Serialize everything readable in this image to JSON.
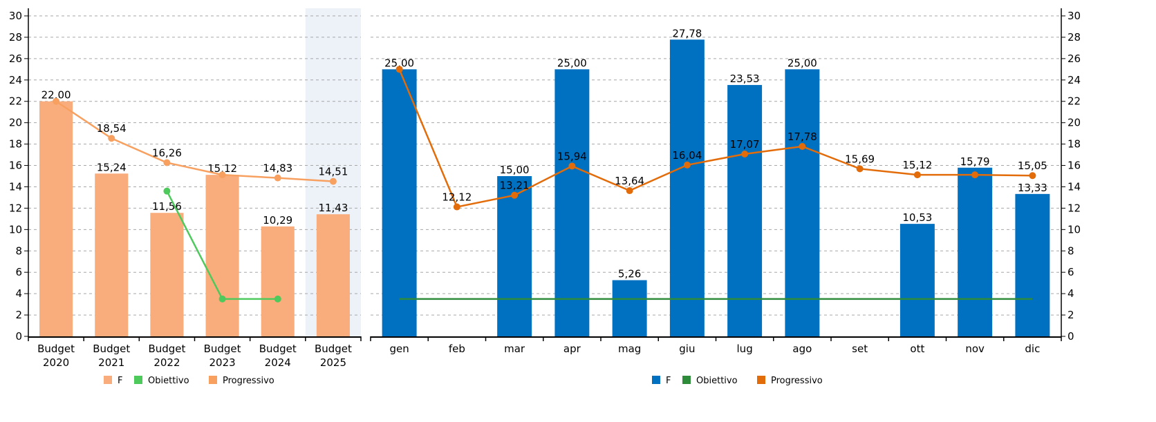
{
  "chart_data": [
    {
      "type": "bar",
      "categories": [
        "Budget 2020",
        "Budget 2021",
        "Budget 2022",
        "Budget 2023",
        "Budget 2024",
        "Budget 2025"
      ],
      "highlighted_category": "Budget 2025",
      "ylim": [
        0,
        30
      ],
      "yticks": [
        0,
        2,
        4,
        6,
        8,
        10,
        12,
        14,
        16,
        18,
        20,
        22,
        24,
        26,
        28,
        30
      ],
      "y_axis_side": "left",
      "grid": true,
      "legend_position": "bottom",
      "series": [
        {
          "name": "F",
          "kind": "bar",
          "color": "#f9ad7d",
          "values": [
            22.0,
            15.24,
            11.56,
            15.12,
            10.29,
            11.43
          ],
          "labels": [
            "22,00",
            "15,24",
            "11,56",
            "15,12",
            "10,29",
            "11,43"
          ]
        },
        {
          "name": "Obiettivo",
          "kind": "line",
          "color": "#4ec95c",
          "values": [
            null,
            null,
            13.6,
            3.5,
            3.5,
            null
          ]
        },
        {
          "name": "Progressivo",
          "kind": "line",
          "color": "#f7a060",
          "values": [
            22.0,
            18.54,
            16.26,
            15.12,
            14.83,
            14.51
          ],
          "labels": [
            "",
            "18,54",
            "16,26",
            "",
            "14,83",
            "14,51"
          ]
        }
      ]
    },
    {
      "type": "bar",
      "categories": [
        "gen",
        "feb",
        "mar",
        "apr",
        "mag",
        "giu",
        "lug",
        "ago",
        "set",
        "ott",
        "nov",
        "dic"
      ],
      "ylim": [
        0,
        30
      ],
      "yticks": [
        0,
        2,
        4,
        6,
        8,
        10,
        12,
        14,
        16,
        18,
        20,
        22,
        24,
        26,
        28,
        30
      ],
      "y_axis_side": "right",
      "grid": true,
      "legend_position": "bottom",
      "series": [
        {
          "name": "F",
          "kind": "bar",
          "color": "#0070c0",
          "values": [
            25.0,
            0,
            15.0,
            25.0,
            5.26,
            27.78,
            23.53,
            25.0,
            0,
            10.53,
            15.79,
            13.33
          ],
          "labels": [
            "25,00",
            "",
            "15,00",
            "25,00",
            "5,26",
            "27,78",
            "23,53",
            "25,00",
            "",
            "10,53",
            "15,79",
            "13,33"
          ]
        },
        {
          "name": "Obiettivo",
          "kind": "line",
          "color": "#2e8b3a",
          "values": [
            3.5,
            3.5,
            3.5,
            3.5,
            3.5,
            3.5,
            3.5,
            3.5,
            3.5,
            3.5,
            3.5,
            3.5
          ]
        },
        {
          "name": "Progressivo",
          "kind": "line",
          "color": "#e36c0a",
          "values": [
            25.0,
            12.12,
            13.21,
            15.94,
            13.64,
            16.04,
            17.07,
            17.78,
            15.69,
            15.12,
            15.12,
            15.05
          ],
          "labels": [
            "",
            "12,12",
            "13,21",
            "15,94",
            "13,64",
            "16,04",
            "17,07",
            "17,78",
            "15,69",
            "15,12",
            "",
            "15,05"
          ]
        }
      ]
    }
  ]
}
